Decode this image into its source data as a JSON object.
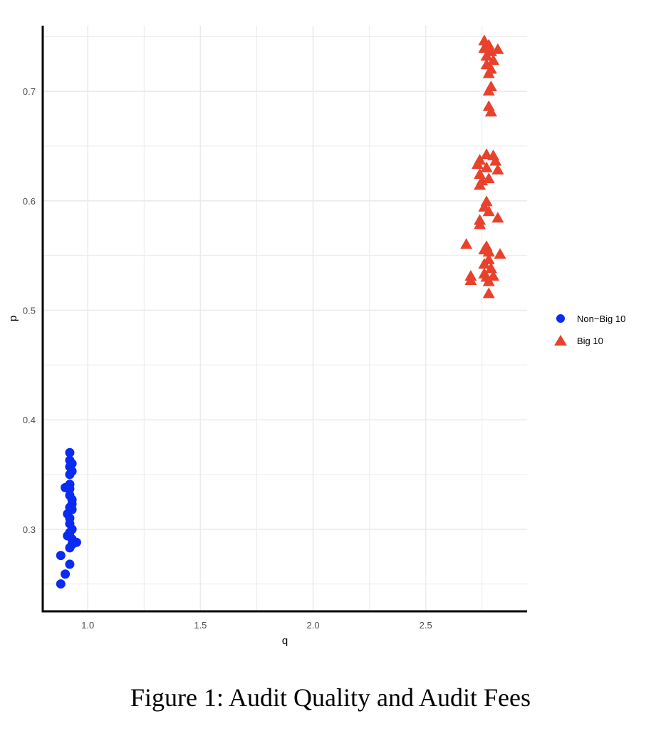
{
  "caption": "Figure 1: Audit Quality and Audit Fees",
  "colors": {
    "non_big10": "#0a2bf2",
    "big10": "#e8412c",
    "grid": "#ebebeb",
    "axis": "#000000"
  },
  "chart_data": {
    "type": "scatter",
    "title": "",
    "xlabel": "q",
    "ylabel": "p",
    "xlim": [
      0.8,
      2.95
    ],
    "ylim": [
      0.225,
      0.76
    ],
    "xticks": [
      1.0,
      1.5,
      2.0,
      2.5
    ],
    "xtick_labels": [
      "1.0",
      "1.5",
      "2.0",
      "2.5"
    ],
    "yticks": [
      0.3,
      0.4,
      0.5,
      0.6,
      0.7
    ],
    "ytick_labels": [
      "0.3",
      "0.4",
      "0.5",
      "0.6",
      "0.7"
    ],
    "grid": true,
    "legend_position": "right",
    "series": [
      {
        "name": "Non−Big 10",
        "marker": "circle",
        "color": "#0a2bf2",
        "points": [
          [
            0.92,
            0.37
          ],
          [
            0.92,
            0.363
          ],
          [
            0.93,
            0.36
          ],
          [
            0.92,
            0.357
          ],
          [
            0.93,
            0.353
          ],
          [
            0.92,
            0.35
          ],
          [
            0.92,
            0.341
          ],
          [
            0.9,
            0.338
          ],
          [
            0.92,
            0.337
          ],
          [
            0.92,
            0.331
          ],
          [
            0.93,
            0.327
          ],
          [
            0.93,
            0.323
          ],
          [
            0.92,
            0.32
          ],
          [
            0.93,
            0.318
          ],
          [
            0.91,
            0.314
          ],
          [
            0.92,
            0.31
          ],
          [
            0.92,
            0.305
          ],
          [
            0.93,
            0.3
          ],
          [
            0.92,
            0.297
          ],
          [
            0.91,
            0.294
          ],
          [
            0.93,
            0.291
          ],
          [
            0.95,
            0.288
          ],
          [
            0.93,
            0.286
          ],
          [
            0.92,
            0.283
          ],
          [
            0.88,
            0.276
          ],
          [
            0.92,
            0.268
          ],
          [
            0.9,
            0.259
          ],
          [
            0.88,
            0.25
          ]
        ]
      },
      {
        "name": "Big 10",
        "marker": "triangle",
        "color": "#e8412c",
        "points": [
          [
            2.76,
            0.746
          ],
          [
            2.78,
            0.742
          ],
          [
            2.76,
            0.739
          ],
          [
            2.82,
            0.738
          ],
          [
            2.79,
            0.736
          ],
          [
            2.77,
            0.732
          ],
          [
            2.8,
            0.728
          ],
          [
            2.77,
            0.724
          ],
          [
            2.79,
            0.72
          ],
          [
            2.78,
            0.716
          ],
          [
            2.79,
            0.704
          ],
          [
            2.78,
            0.7
          ],
          [
            2.78,
            0.686
          ],
          [
            2.79,
            0.681
          ],
          [
            2.77,
            0.642
          ],
          [
            2.8,
            0.641
          ],
          [
            2.74,
            0.637
          ],
          [
            2.81,
            0.636
          ],
          [
            2.73,
            0.633
          ],
          [
            2.77,
            0.63
          ],
          [
            2.82,
            0.628
          ],
          [
            2.74,
            0.624
          ],
          [
            2.78,
            0.62
          ],
          [
            2.75,
            0.618
          ],
          [
            2.74,
            0.614
          ],
          [
            2.77,
            0.599
          ],
          [
            2.76,
            0.594
          ],
          [
            2.78,
            0.59
          ],
          [
            2.82,
            0.584
          ],
          [
            2.74,
            0.582
          ],
          [
            2.74,
            0.578
          ],
          [
            2.68,
            0.56
          ],
          [
            2.77,
            0.558
          ],
          [
            2.76,
            0.555
          ],
          [
            2.78,
            0.553
          ],
          [
            2.83,
            0.551
          ],
          [
            2.78,
            0.546
          ],
          [
            2.76,
            0.542
          ],
          [
            2.79,
            0.538
          ],
          [
            2.76,
            0.533
          ],
          [
            2.7,
            0.531
          ],
          [
            2.8,
            0.531
          ],
          [
            2.77,
            0.53
          ],
          [
            2.7,
            0.527
          ],
          [
            2.78,
            0.526
          ],
          [
            2.78,
            0.515
          ]
        ]
      }
    ]
  }
}
